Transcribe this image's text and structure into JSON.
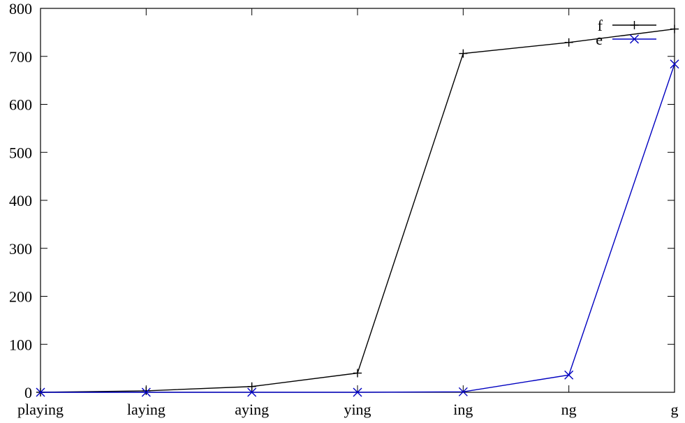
{
  "chart_data": {
    "type": "line",
    "title": "",
    "xlabel": "",
    "ylabel": "",
    "categories": [
      "playing",
      "laying",
      "aying",
      "ying",
      "ing",
      "ng",
      "g"
    ],
    "ylim": [
      0,
      800
    ],
    "yticks": [
      0,
      100,
      200,
      300,
      400,
      500,
      600,
      700,
      800
    ],
    "grid": false,
    "legend_position": "top-right",
    "series": [
      {
        "name": "f",
        "values": [
          0,
          3,
          12,
          40,
          706,
          729,
          757
        ],
        "color": "#000000",
        "marker": "plus"
      },
      {
        "name": "e",
        "values": [
          0,
          0,
          0,
          0,
          1,
          36,
          684
        ],
        "color": "#0000c0",
        "marker": "cross"
      }
    ]
  }
}
